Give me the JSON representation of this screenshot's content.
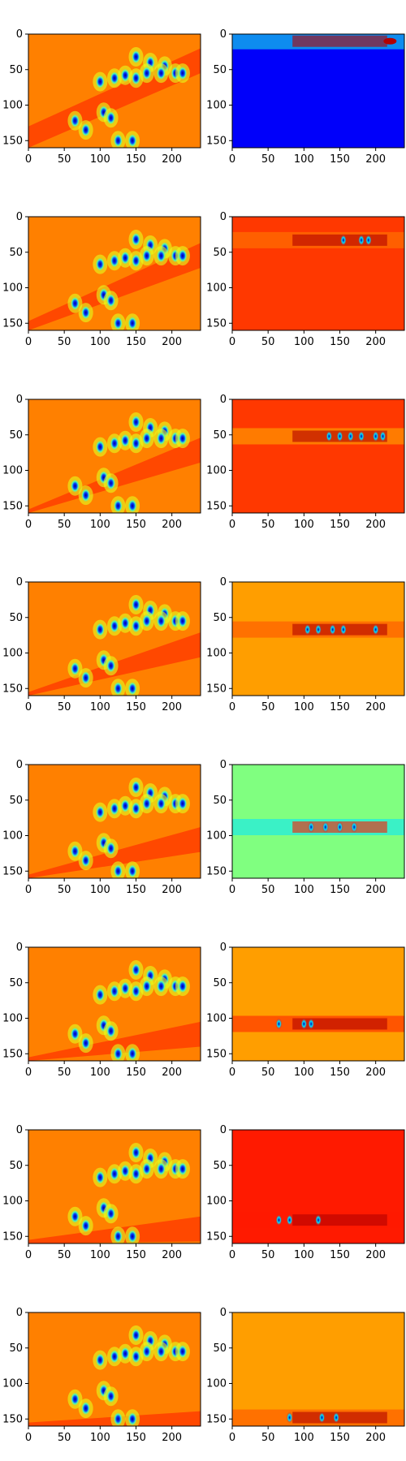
{
  "colors": {
    "background": "#ffffff",
    "axis": "#000000",
    "jet_low": "#00008f",
    "jet_mid": "#7aff80",
    "jet_high": "#800000"
  },
  "chart_data": {
    "type": "heatmap",
    "colormap": "jet",
    "grid": false,
    "legend": "none",
    "title": "",
    "xlabel": "",
    "ylabel": "",
    "xlim": [
      0,
      240
    ],
    "ylim": [
      160,
      0
    ],
    "x_ticks": [
      0,
      50,
      100,
      150,
      200
    ],
    "y_ticks": [
      0,
      50,
      100,
      150
    ],
    "y_axis_inverted": true,
    "layout": {
      "rows": 8,
      "cols": 2
    },
    "left_column": {
      "description": "full-field maps, orange/red background with blue-cyan blobs",
      "blobs": [
        [
          150,
          32
        ],
        [
          170,
          40
        ],
        [
          190,
          45
        ],
        [
          185,
          55
        ],
        [
          205,
          55
        ],
        [
          215,
          55
        ],
        [
          100,
          67
        ],
        [
          120,
          62
        ],
        [
          135,
          58
        ],
        [
          150,
          62
        ],
        [
          165,
          55
        ],
        [
          105,
          110
        ],
        [
          115,
          118
        ],
        [
          65,
          122
        ],
        [
          80,
          135
        ],
        [
          125,
          150
        ],
        [
          145,
          150
        ]
      ]
    },
    "right_column": [
      {
        "row": 1,
        "background_value": 0.12,
        "band_y": 10,
        "band_values": [
          0.4,
          0.95
        ]
      },
      {
        "row": 2,
        "background_value": 0.82,
        "band_y": 33,
        "band_values": [
          0.75,
          0.95
        ],
        "hot_x": [
          155,
          180,
          190
        ]
      },
      {
        "row": 3,
        "background_value": 0.82,
        "band_y": 52,
        "band_values": [
          0.7,
          0.95
        ],
        "hot_x": [
          135,
          150,
          165,
          180,
          200,
          210
        ]
      },
      {
        "row": 4,
        "background_value": 0.72,
        "band_y": 67,
        "band_values": [
          0.8,
          0.95
        ],
        "hot_x": [
          105,
          120,
          140,
          155,
          200
        ]
      },
      {
        "row": 5,
        "background_value": 0.5,
        "band_y": 88,
        "band_values": [
          0.35,
          0.85
        ],
        "hot_x": [
          110,
          130,
          150,
          170
        ]
      },
      {
        "row": 6,
        "background_value": 0.72,
        "band_y": 108,
        "band_values": [
          0.85,
          0.95
        ],
        "hot_x": [
          65,
          100,
          110
        ]
      },
      {
        "row": 7,
        "background_value": 0.85,
        "band_y": 127,
        "band_values": [
          0.85,
          0.95
        ],
        "hot_x": [
          65,
          80,
          120
        ]
      },
      {
        "row": 8,
        "background_value": 0.72,
        "band_y": 148,
        "band_values": [
          0.8,
          0.95
        ],
        "hot_x": [
          80,
          125,
          145
        ]
      }
    ]
  }
}
